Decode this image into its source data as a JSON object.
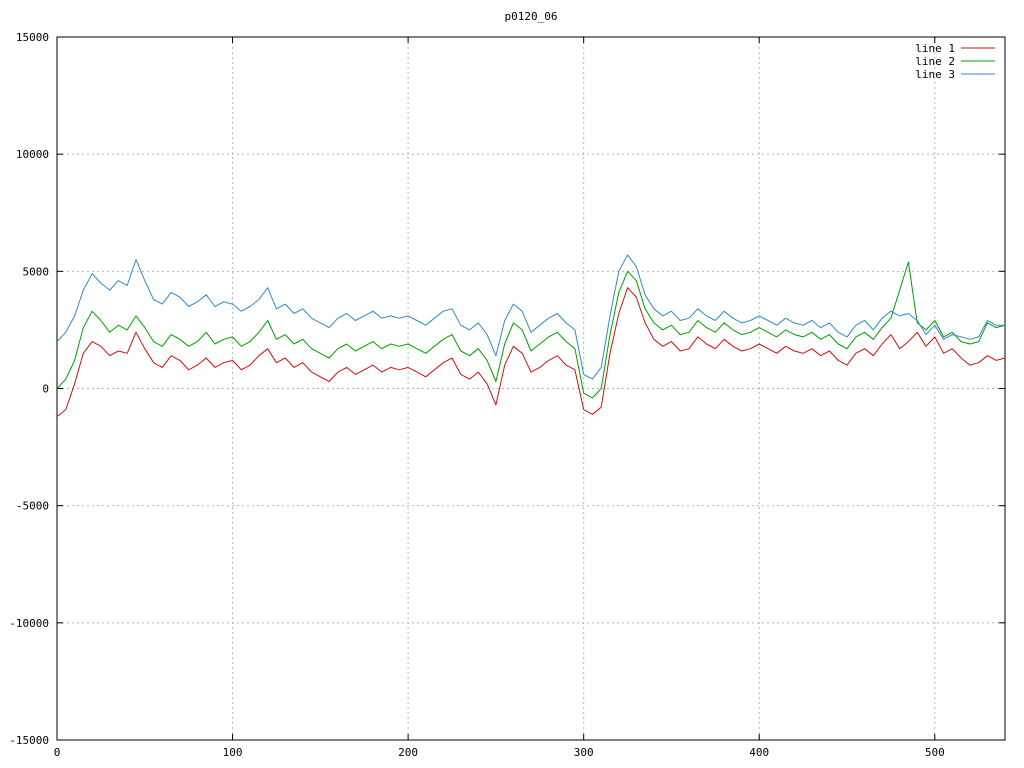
{
  "chart_data": {
    "type": "line",
    "title": "p0120_06",
    "xlabel": "",
    "ylabel": "",
    "xlim": [
      0,
      540
    ],
    "ylim": [
      -15000,
      15000
    ],
    "x_ticks": [
      0,
      100,
      200,
      300,
      400,
      500
    ],
    "y_ticks": [
      -15000,
      -10000,
      -5000,
      0,
      5000,
      10000,
      15000
    ],
    "grid": true,
    "legend_position": "top-right",
    "x_start": 0,
    "x_step": 5,
    "series": [
      {
        "name": "line 1",
        "color": "#cc1111",
        "values": [
          -1200,
          -900,
          200,
          1500,
          2000,
          1800,
          1400,
          1600,
          1500,
          2400,
          1700,
          1100,
          900,
          1400,
          1200,
          800,
          1000,
          1300,
          900,
          1100,
          1200,
          800,
          1000,
          1400,
          1700,
          1100,
          1300,
          900,
          1100,
          700,
          500,
          300,
          700,
          900,
          600,
          800,
          1000,
          700,
          900,
          800,
          900,
          700,
          500,
          800,
          1100,
          1300,
          600,
          400,
          700,
          200,
          -700,
          1000,
          1800,
          1500,
          700,
          900,
          1200,
          1400,
          1000,
          800,
          -900,
          -1100,
          -800,
          1500,
          3200,
          4300,
          3900,
          2800,
          2100,
          1800,
          2000,
          1600,
          1700,
          2200,
          1900,
          1700,
          2100,
          1800,
          1600,
          1700,
          1900,
          1700,
          1500,
          1800,
          1600,
          1500,
          1700,
          1400,
          1600,
          1200,
          1000,
          1500,
          1700,
          1400,
          1900,
          2300,
          1700,
          2000,
          2400,
          1800,
          2200,
          1500,
          1700,
          1300,
          1000,
          1100,
          1400,
          1200,
          1300
        ]
      },
      {
        "name": "line 2",
        "color": "#00a000",
        "values": [
          0,
          400,
          1200,
          2600,
          3300,
          2900,
          2400,
          2700,
          2500,
          3100,
          2600,
          2000,
          1800,
          2300,
          2100,
          1800,
          2000,
          2400,
          1900,
          2100,
          2200,
          1800,
          2000,
          2400,
          2900,
          2100,
          2300,
          1900,
          2100,
          1700,
          1500,
          1300,
          1700,
          1900,
          1600,
          1800,
          2000,
          1700,
          1900,
          1800,
          1900,
          1700,
          1500,
          1800,
          2100,
          2300,
          1600,
          1400,
          1700,
          1200,
          300,
          1900,
          2800,
          2500,
          1600,
          1900,
          2200,
          2400,
          2000,
          1700,
          -200,
          -400,
          0,
          2300,
          4100,
          5000,
          4600,
          3400,
          2800,
          2500,
          2700,
          2300,
          2400,
          2900,
          2600,
          2400,
          2800,
          2500,
          2300,
          2400,
          2600,
          2400,
          2200,
          2500,
          2300,
          2200,
          2400,
          2100,
          2300,
          1900,
          1700,
          2200,
          2400,
          2100,
          2600,
          3000,
          4200,
          5400,
          2800,
          2500,
          2900,
          2200,
          2400,
          2000,
          1900,
          2000,
          2800,
          2600,
          2700
        ]
      },
      {
        "name": "line 3",
        "color": "#3388cc",
        "values": [
          2000,
          2400,
          3100,
          4200,
          4900,
          4500,
          4200,
          4600,
          4400,
          5500,
          4600,
          3800,
          3600,
          4100,
          3900,
          3500,
          3700,
          4000,
          3500,
          3700,
          3600,
          3300,
          3500,
          3800,
          4300,
          3400,
          3600,
          3200,
          3400,
          3000,
          2800,
          2600,
          3000,
          3200,
          2900,
          3100,
          3300,
          3000,
          3100,
          3000,
          3100,
          2900,
          2700,
          3000,
          3300,
          3400,
          2700,
          2500,
          2800,
          2300,
          1400,
          2900,
          3600,
          3300,
          2400,
          2700,
          3000,
          3200,
          2800,
          2500,
          600,
          400,
          900,
          3100,
          5000,
          5700,
          5200,
          4000,
          3400,
          3100,
          3300,
          2900,
          3000,
          3400,
          3100,
          2900,
          3300,
          3000,
          2800,
          2900,
          3100,
          2900,
          2700,
          3000,
          2800,
          2700,
          2900,
          2600,
          2800,
          2400,
          2200,
          2700,
          2900,
          2500,
          3000,
          3300,
          3100,
          3200,
          2900,
          2300,
          2700,
          2100,
          2300,
          2200,
          2100,
          2200,
          2900,
          2700,
          2700
        ]
      }
    ]
  }
}
